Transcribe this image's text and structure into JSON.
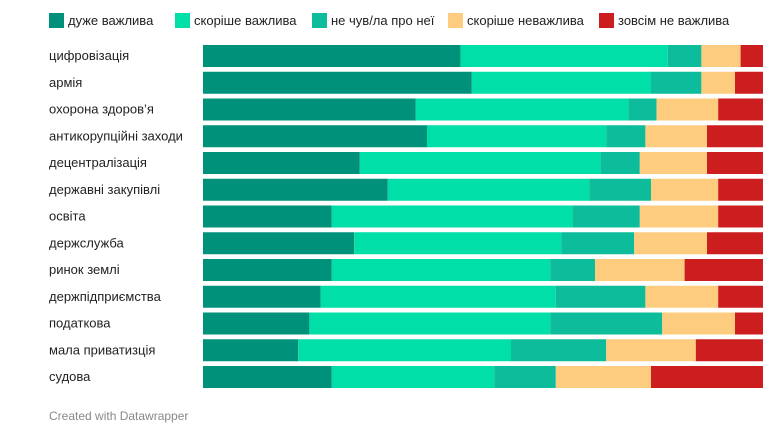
{
  "chart_data": {
    "type": "bar",
    "orientation": "horizontal",
    "stacked": "100%",
    "legend_position": "top",
    "grid": false,
    "categories": [
      "цифровізація",
      "армія",
      "охорона здоров’я",
      "антикорупційні заходи",
      "децентралізація",
      "державні закупівлі",
      "освіта",
      "держслужба",
      "ринок землі",
      "держпідприємства",
      "податкова",
      "мала приватизція",
      "судова"
    ],
    "series": [
      {
        "name": "дуже важлива",
        "color": "#00917a",
        "values": [
          46,
          48,
          38,
          40,
          28,
          33,
          23,
          27,
          23,
          21,
          19,
          17,
          23
        ]
      },
      {
        "name": "скоріше важлива",
        "color": "#00dfa7",
        "values": [
          37,
          32,
          38,
          32,
          43,
          36,
          43,
          37,
          39,
          42,
          43,
          38,
          29
        ]
      },
      {
        "name": "не чув/ла про неї",
        "color": "#0cbc9b",
        "values": [
          6,
          9,
          5,
          7,
          7,
          11,
          12,
          13,
          8,
          16,
          20,
          17,
          11
        ]
      },
      {
        "name": "скоріше неважлива",
        "color": "#fdcc7f",
        "values": [
          7,
          6,
          11,
          11,
          12,
          12,
          14,
          13,
          16,
          13,
          13,
          16,
          17
        ]
      },
      {
        "name": "зовсім не важлива",
        "color": "#cc1e1e",
        "values": [
          4,
          5,
          8,
          10,
          10,
          8,
          8,
          10,
          14,
          8,
          5,
          12,
          20
        ]
      }
    ]
  },
  "footer": {
    "credit": "Created with Datawrapper"
  }
}
